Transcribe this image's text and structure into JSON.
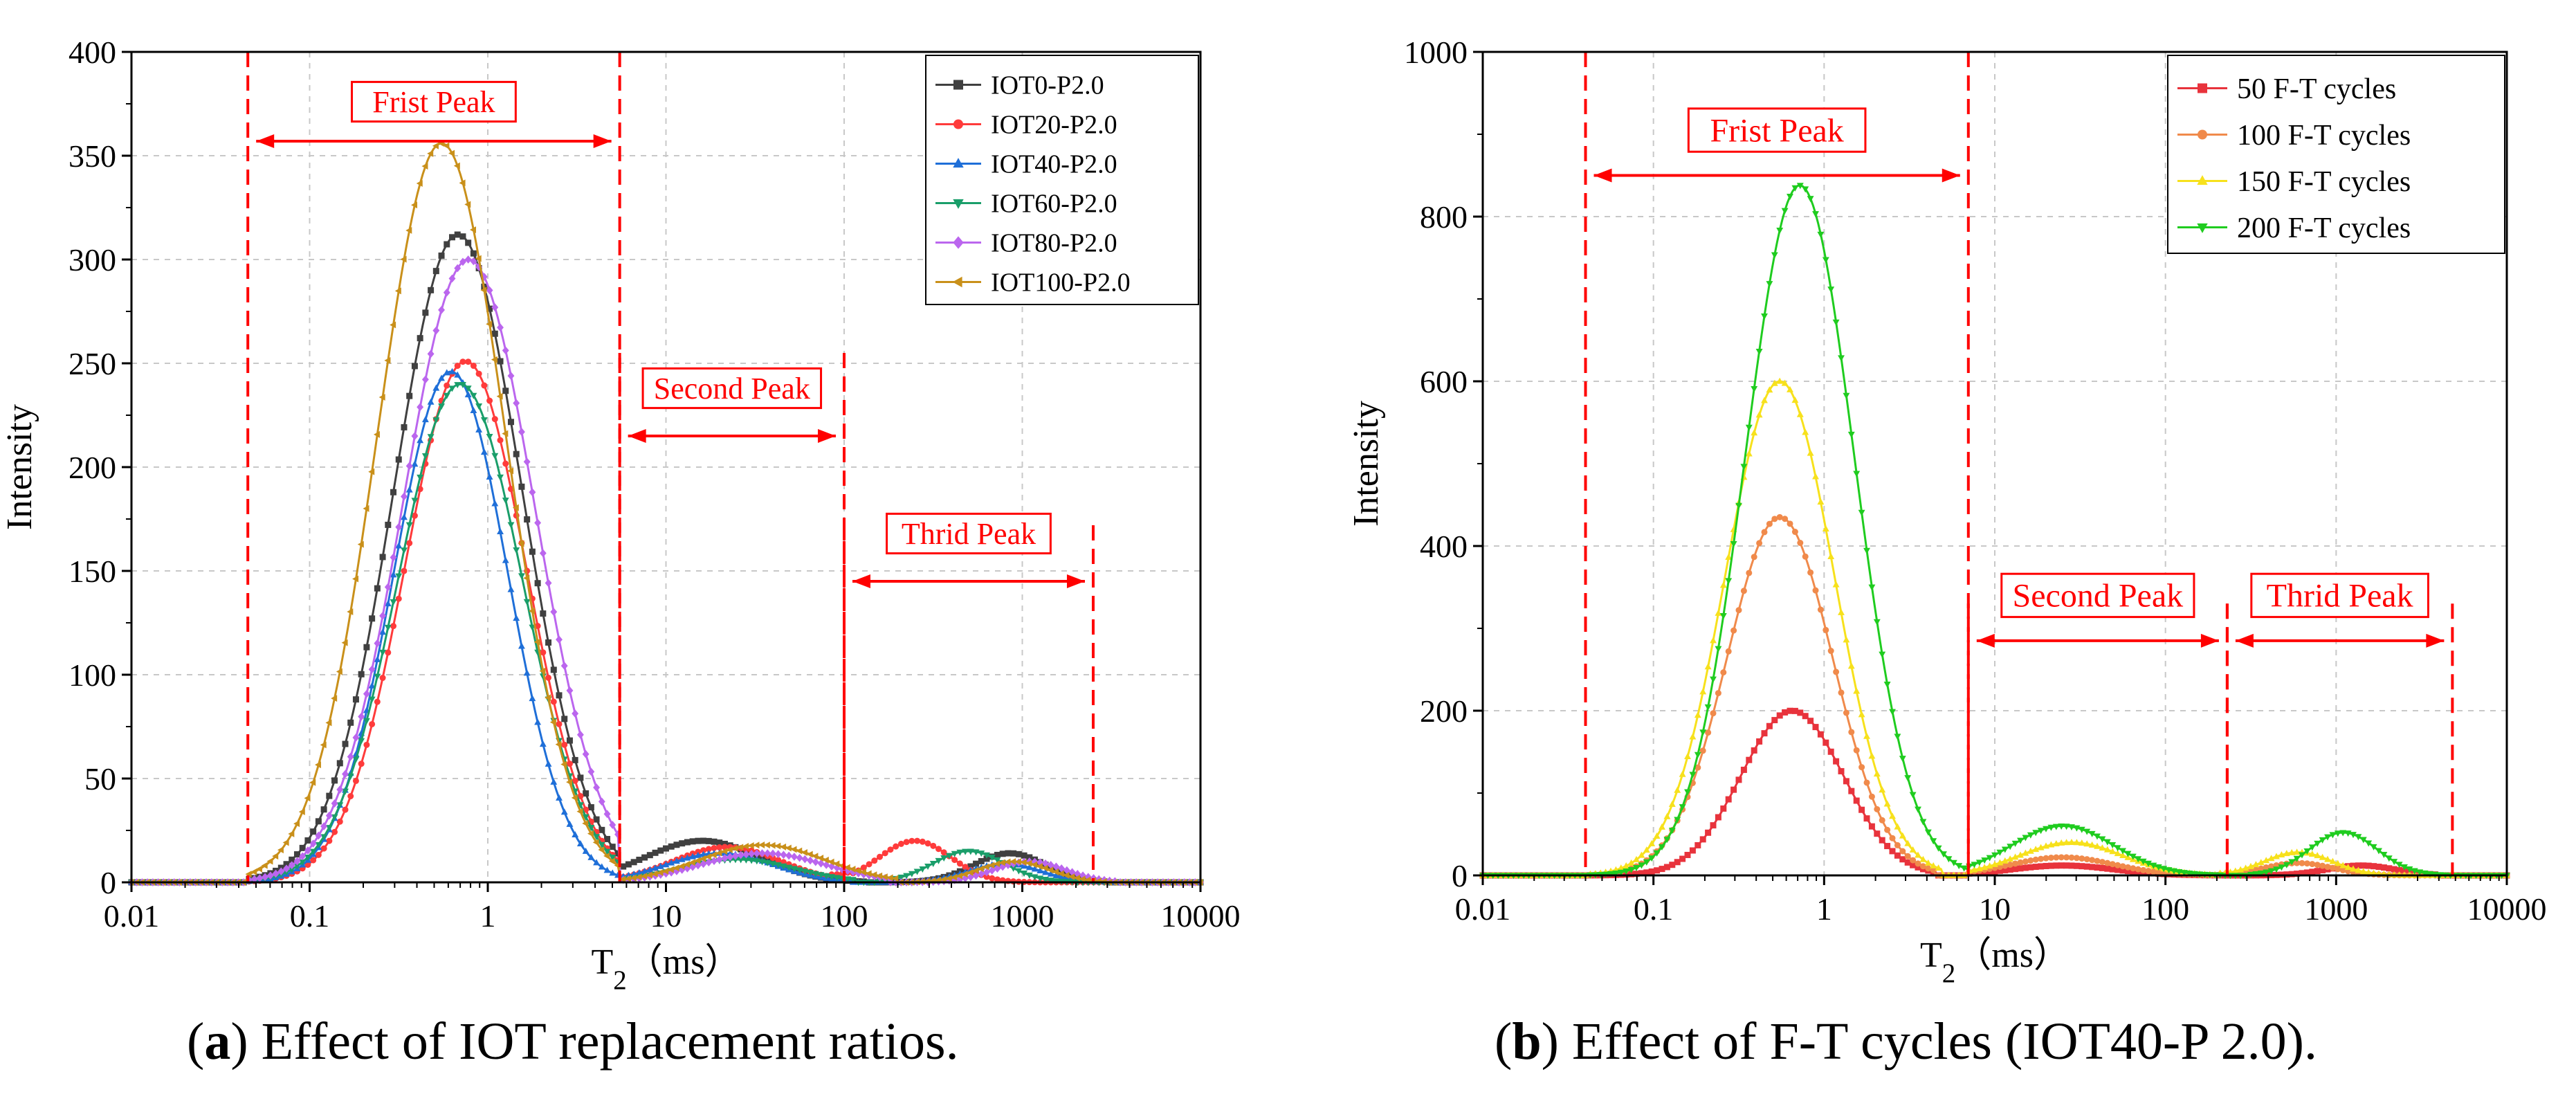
{
  "chart_data": [
    {
      "panel": "a",
      "type": "line",
      "caption_letter": "a",
      "caption_text": "Effect of IOT replacement ratios.",
      "xlabel": "T",
      "xlabel_sub": "2",
      "xlabel_unit": "（ms）",
      "ylabel": "Intensity",
      "xscale": "log",
      "xlim": [
        0.01,
        10000
      ],
      "ylim": [
        0,
        400
      ],
      "xticks": [
        0.01,
        0.1,
        1,
        10,
        100,
        1000,
        10000
      ],
      "xtick_labels": [
        "0.01",
        "0.1",
        "1",
        "10",
        "100",
        "1000",
        "10000"
      ],
      "yticks": [
        0,
        50,
        100,
        150,
        200,
        250,
        300,
        350,
        400
      ],
      "ytick_labels": [
        "0",
        "50",
        "100",
        "150",
        "200",
        "250",
        "300",
        "350",
        "400"
      ],
      "grid": true,
      "legend_position": "top-right",
      "series": [
        {
          "name": "IOT0-P2.0",
          "color": "#404040",
          "marker": "square",
          "peaks": [
            {
              "amp": 312,
              "center": 0.68,
              "width": 0.36,
              "lo": 0.045,
              "hi": 5.5
            },
            {
              "amp": 20,
              "center": 16,
              "width": 0.32,
              "lo": 5.5,
              "hi": 130
            },
            {
              "amp": 14,
              "center": 850,
              "width": 0.2,
              "lo": 180,
              "hi": 3000
            }
          ]
        },
        {
          "name": "IOT20-P2.0",
          "color": "#ff3b3b",
          "marker": "circle",
          "peaks": [
            {
              "amp": 251,
              "center": 0.75,
              "width": 0.34,
              "lo": 0.045,
              "hi": 5.5
            },
            {
              "amp": 17,
              "center": 22,
              "width": 0.3,
              "lo": 5.5,
              "hi": 110
            },
            {
              "amp": 20,
              "center": 250,
              "width": 0.2,
              "lo": 80,
              "hi": 1200
            }
          ]
        },
        {
          "name": "IOT40-P2.0",
          "color": "#1f6fd8",
          "marker": "triangle-up",
          "peaks": [
            {
              "amp": 246,
              "center": 0.62,
              "width": 0.32,
              "lo": 0.045,
              "hi": 5.5
            },
            {
              "amp": 14,
              "center": 20,
              "width": 0.3,
              "lo": 5.5,
              "hi": 110
            },
            {
              "amp": 9,
              "center": 800,
              "width": 0.2,
              "lo": 180,
              "hi": 3000
            }
          ]
        },
        {
          "name": "IOT60-P2.0",
          "color": "#1a9e6a",
          "marker": "triangle-down",
          "peaks": [
            {
              "amp": 240,
              "center": 0.7,
              "width": 0.35,
              "lo": 0.045,
              "hi": 5.5
            },
            {
              "amp": 11,
              "center": 25,
              "width": 0.32,
              "lo": 5.5,
              "hi": 120
            },
            {
              "amp": 15,
              "center": 500,
              "width": 0.2,
              "lo": 150,
              "hi": 2000
            }
          ]
        },
        {
          "name": "IOT80-P2.0",
          "color": "#bb66ee",
          "marker": "diamond",
          "peaks": [
            {
              "amp": 300,
              "center": 0.78,
              "width": 0.37,
              "lo": 0.045,
              "hi": 5.5
            },
            {
              "amp": 14,
              "center": 35,
              "width": 0.35,
              "lo": 5.5,
              "hi": 180
            },
            {
              "amp": 10,
              "center": 1100,
              "width": 0.2,
              "lo": 250,
              "hi": 3500
            }
          ]
        },
        {
          "name": "IOT100-P2.0",
          "color": "#c9901a",
          "marker": "triangle-left",
          "peaks": [
            {
              "amp": 356,
              "center": 0.55,
              "width": 0.36,
              "lo": 0.045,
              "hi": 5.5
            },
            {
              "amp": 18,
              "center": 35,
              "width": 0.35,
              "lo": 5.5,
              "hi": 200
            },
            {
              "amp": 10,
              "center": 900,
              "width": 0.2,
              "lo": 250,
              "hi": 3000
            }
          ]
        }
      ],
      "annotations": [
        {
          "text": "Frist Peak",
          "x_start": 0.045,
          "x_end": 5.5,
          "arrow_y": 357,
          "label_y": 376,
          "line_top": 400
        },
        {
          "text": "Second Peak",
          "x_start": 5.5,
          "x_end": 100,
          "arrow_y": 215,
          "label_y": 238,
          "line_top": 255
        },
        {
          "text": "Thrid Peak",
          "x_start": 100,
          "x_end": 2500,
          "arrow_y": 145,
          "label_y": 168,
          "line_top": 172
        }
      ]
    },
    {
      "panel": "b",
      "type": "line",
      "caption_letter": "b",
      "caption_text": "Effect of F-T cycles (IOT40-P 2.0).",
      "xlabel": "T",
      "xlabel_sub": "2",
      "xlabel_unit": "（ms）",
      "ylabel": "Intensity",
      "xscale": "log",
      "xlim": [
        0.01,
        10000
      ],
      "ylim": [
        0,
        1000
      ],
      "xticks": [
        0.01,
        0.1,
        1,
        10,
        100,
        1000,
        10000
      ],
      "xtick_labels": [
        "0.01",
        "0.1",
        "1",
        "10",
        "100",
        "1000",
        "10000"
      ],
      "yticks": [
        0,
        200,
        400,
        600,
        800,
        1000
      ],
      "ytick_labels": [
        "0",
        "200",
        "400",
        "600",
        "800",
        "1000"
      ],
      "grid": true,
      "legend_position": "top-right",
      "series": [
        {
          "name": "50 F-T cycles",
          "color": "#e8333c",
          "marker": "square",
          "peaks": [
            {
              "amp": 200,
              "center": 0.65,
              "width": 0.3,
              "lo": 0.04,
              "hi": 4.5
            },
            {
              "amp": 12,
              "center": 25,
              "width": 0.3,
              "lo": 7,
              "hi": 220
            },
            {
              "amp": 12,
              "center": 1400,
              "width": 0.2,
              "lo": 300,
              "hi": 4000
            }
          ]
        },
        {
          "name": "100 F-T cycles",
          "color": "#f08a4b",
          "marker": "circle",
          "peaks": [
            {
              "amp": 435,
              "center": 0.55,
              "width": 0.31,
              "lo": 0.04,
              "hi": 4.5
            },
            {
              "amp": 22,
              "center": 25,
              "width": 0.3,
              "lo": 7,
              "hi": 220
            },
            {
              "amp": 15,
              "center": 600,
              "width": 0.2,
              "lo": 200,
              "hi": 3000
            }
          ]
        },
        {
          "name": "150 F-T cycles",
          "color": "#f7e11c",
          "marker": "triangle-up",
          "peaks": [
            {
              "amp": 600,
              "center": 0.55,
              "width": 0.32,
              "lo": 0.04,
              "hi": 5
            },
            {
              "amp": 40,
              "center": 28,
              "width": 0.3,
              "lo": 7,
              "hi": 220
            },
            {
              "amp": 28,
              "center": 600,
              "width": 0.2,
              "lo": 200,
              "hi": 3000
            }
          ]
        },
        {
          "name": "200 F-T cycles",
          "color": "#1fcc1f",
          "marker": "triangle-down",
          "peaks": [
            {
              "amp": 838,
              "center": 0.72,
              "width": 0.32,
              "lo": 0.04,
              "hi": 7
            },
            {
              "amp": 60,
              "center": 25,
              "width": 0.3,
              "lo": 7,
              "hi": 220
            },
            {
              "amp": 52,
              "center": 1100,
              "width": 0.2,
              "lo": 300,
              "hi": 4500
            }
          ]
        }
      ],
      "annotations": [
        {
          "text": "Frist Peak",
          "x_start": 0.04,
          "x_end": 7,
          "arrow_y": 850,
          "label_y": 905,
          "line_top": 1000
        },
        {
          "text": "Second Peak",
          "x_start": 7,
          "x_end": 230,
          "arrow_y": 285,
          "label_y": 340,
          "line_top": 330
        },
        {
          "text": "Thrid Peak",
          "x_start": 230,
          "x_end": 4800,
          "arrow_y": 285,
          "label_y": 340,
          "line_top": 330
        }
      ]
    }
  ]
}
